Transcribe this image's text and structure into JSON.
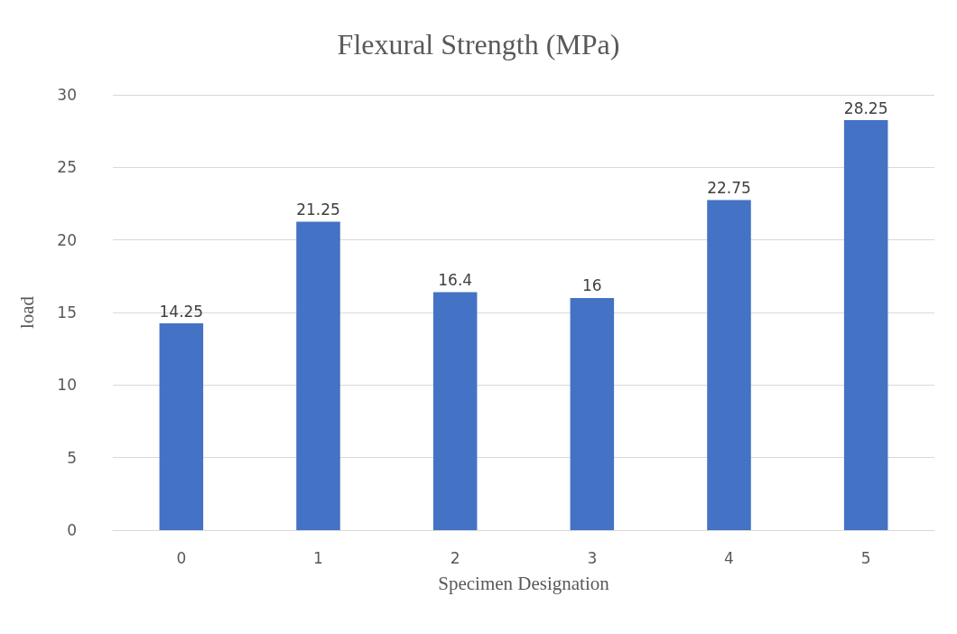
{
  "chart_data": {
    "type": "bar",
    "title": "Flexural Strength (MPa)",
    "xlabel": "Specimen Designation",
    "ylabel": "load",
    "categories": [
      "0",
      "1",
      "2",
      "3",
      "4",
      "5"
    ],
    "values": [
      14.25,
      21.25,
      16.4,
      16,
      22.75,
      28.25
    ],
    "color": "#4472c4",
    "ylim": [
      0,
      30
    ],
    "yticks": [
      0,
      5,
      10,
      15,
      20,
      25,
      30
    ],
    "grid": "y",
    "data_labels": true
  }
}
